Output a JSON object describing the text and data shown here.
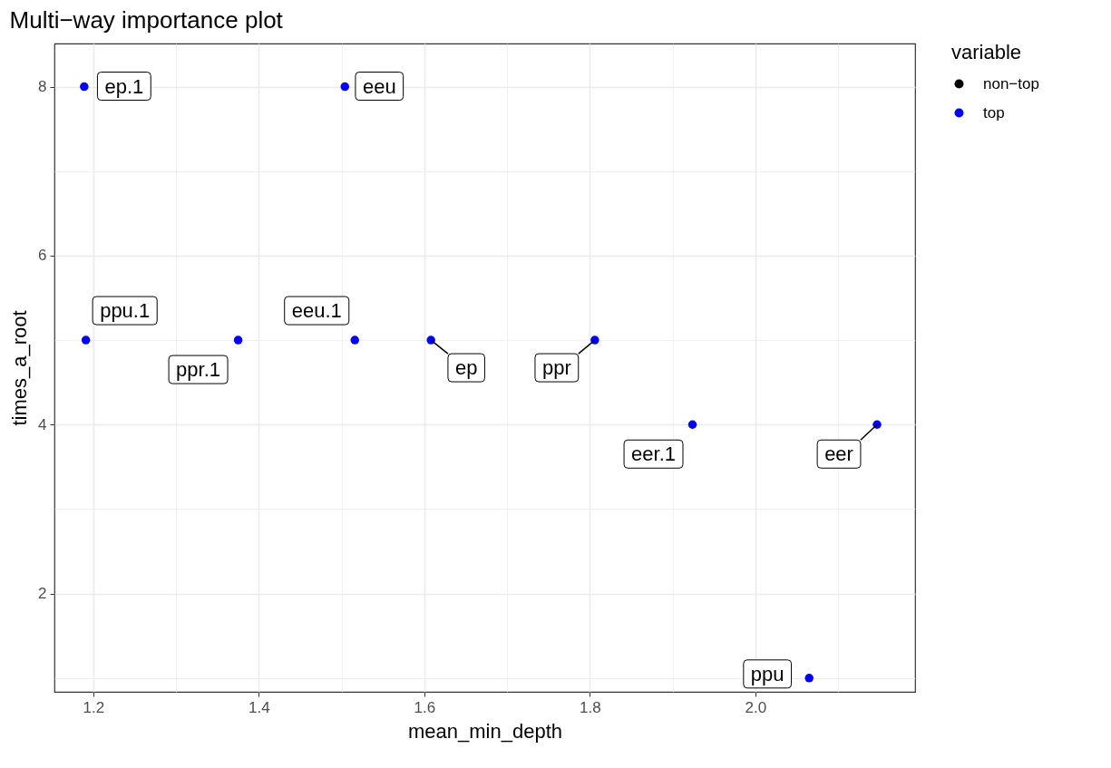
{
  "chart_data": {
    "type": "scatter",
    "title": "Multi−way importance plot",
    "xlabel": "mean_min_depth",
    "ylabel": "times_a_root",
    "legend_title": "variable",
    "xlim": [
      1.153,
      2.193
    ],
    "xticks": [
      1.2,
      {
        "value": 1.3,
        "label": null
      },
      1.4,
      {
        "value": 1.5,
        "label": null
      },
      1.6,
      {
        "value": 1.7,
        "label": null
      },
      1.8,
      {
        "value": 1.9,
        "label": null
      },
      {
        "value": 2.0,
        "label": "2.0"
      },
      {
        "value": 2.1,
        "label": null
      }
    ],
    "ylim": [
      0.837,
      8.51
    ],
    "yticks": [
      {
        "value": 1,
        "label": null
      },
      2,
      {
        "value": 3,
        "label": null
      },
      4,
      {
        "value": 5,
        "label": null
      },
      6,
      {
        "value": 7,
        "label": null
      },
      8
    ],
    "grid": true,
    "legend": "right",
    "marker": "circle",
    "series": [
      {
        "name": "non−top",
        "color": "#000000"
      },
      {
        "name": "top",
        "color": "#0000ff",
        "x": [
          1.189,
          1.504,
          1.191,
          1.375,
          1.516,
          1.608,
          1.806,
          1.924,
          2.147,
          2.065
        ],
        "values": [
          8,
          8,
          5,
          5,
          5,
          5,
          5,
          4,
          4,
          1
        ]
      }
    ],
    "annotations": [
      {
        "text": "ep.1",
        "x": 1.189,
        "y": 8
      },
      {
        "text": "eeu",
        "x": 1.504,
        "y": 8
      },
      {
        "text": "ppu.1",
        "x": 1.191,
        "y": 5
      },
      {
        "text": "ppr.1",
        "x": 1.375,
        "y": 5
      },
      {
        "text": "eeu.1",
        "x": 1.516,
        "y": 5
      },
      {
        "text": "ep",
        "x": 1.608,
        "y": 5
      },
      {
        "text": "ppr",
        "x": 1.806,
        "y": 5
      },
      {
        "text": "eer.1",
        "x": 1.924,
        "y": 4
      },
      {
        "text": "eer",
        "x": 2.147,
        "y": 4
      },
      {
        "text": "ppu",
        "x": 2.065,
        "y": 1
      }
    ]
  }
}
